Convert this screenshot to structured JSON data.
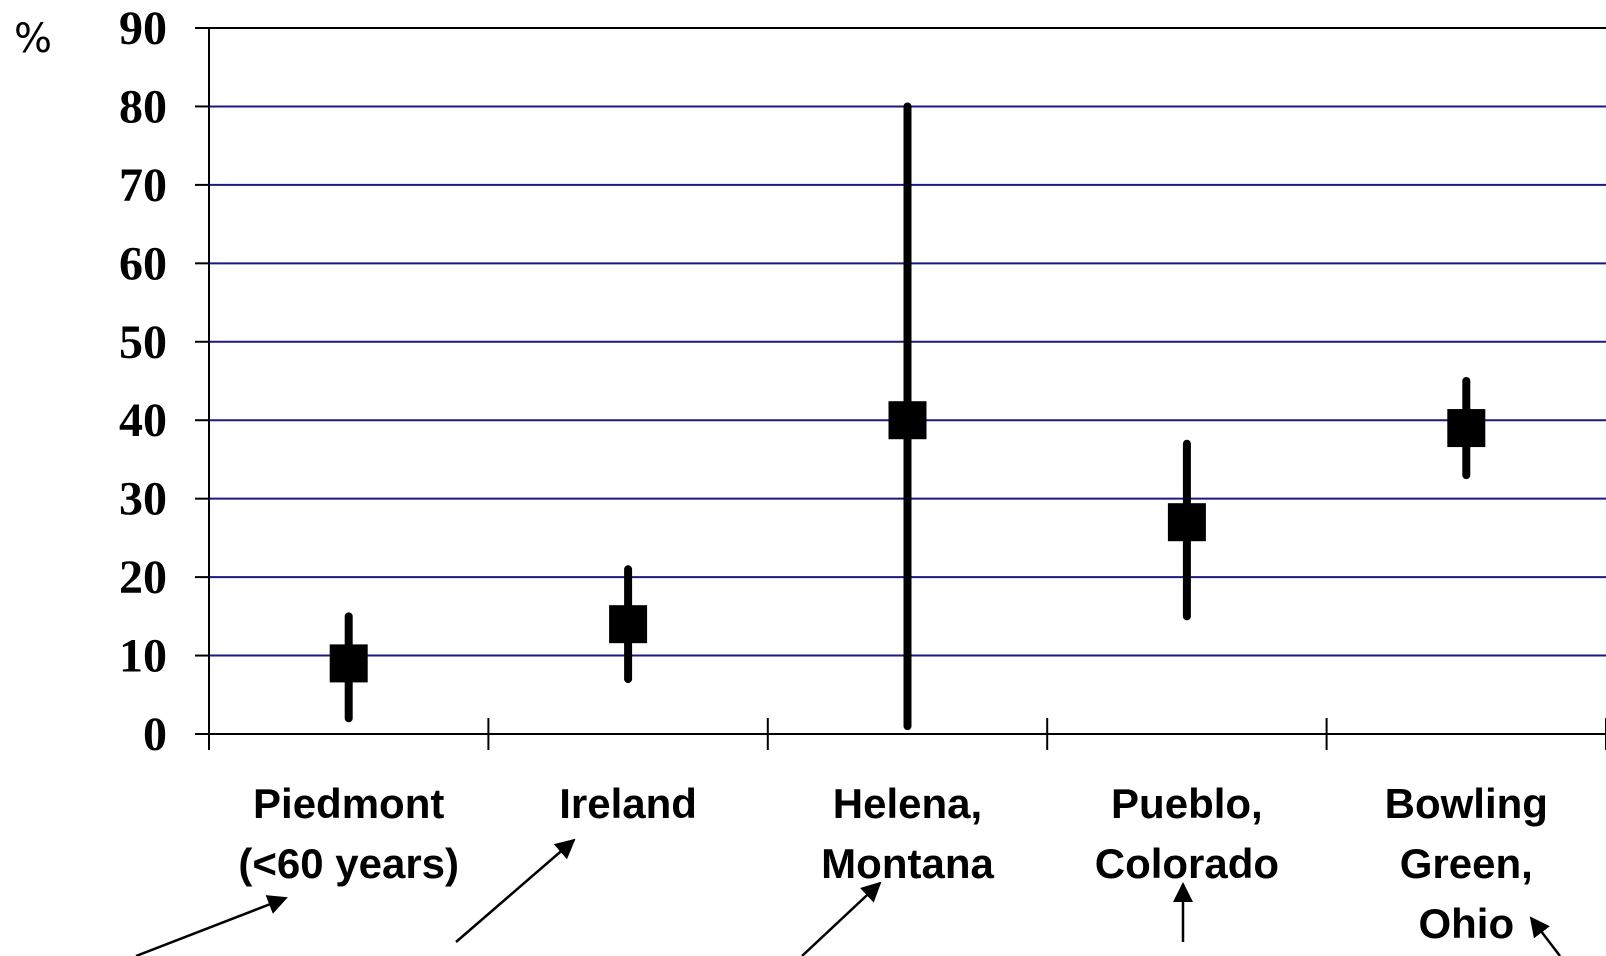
{
  "chart_data": {
    "type": "scatter",
    "unit_label": "%",
    "ylim": [
      0,
      90
    ],
    "yticks": [
      "0",
      "10",
      "20",
      "30",
      "40",
      "50",
      "60",
      "70",
      "80",
      "90"
    ],
    "grid": true,
    "grid_color": "#1a1a80",
    "marker_color": "#000000",
    "categories": [
      {
        "lines": [
          "Piedmont",
          "(<60 years)"
        ]
      },
      {
        "lines": [
          "Ireland"
        ]
      },
      {
        "lines": [
          "Helena,",
          "Montana"
        ]
      },
      {
        "lines": [
          "Pueblo,",
          "Colorado"
        ]
      },
      {
        "lines": [
          "Bowling",
          "Green,",
          "Ohio"
        ]
      }
    ],
    "values": [
      9,
      14,
      40,
      27,
      39
    ],
    "error_low": [
      2,
      7,
      1,
      15,
      33
    ],
    "error_high": [
      15,
      21,
      80,
      37,
      45
    ]
  }
}
